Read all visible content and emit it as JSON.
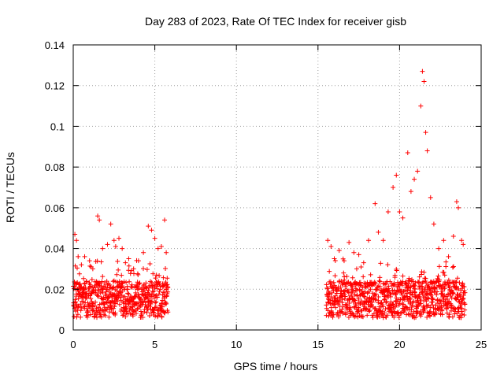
{
  "chart_data": {
    "type": "scatter",
    "title": "Day 283 of 2023, Rate Of TEC Index for receiver gisb",
    "xlabel": "GPS time / hours",
    "ylabel": "ROTI / TECUs",
    "xlim": [
      0,
      25
    ],
    "ylim": [
      0,
      0.14
    ],
    "x_ticks": [
      "0",
      "5",
      "10",
      "15",
      "20",
      "25"
    ],
    "y_ticks": [
      "0",
      "0.02",
      "0.04",
      "0.06",
      "0.08",
      "0.1",
      "0.12",
      "0.14"
    ],
    "grid": true,
    "legend": "none",
    "marker": "plus",
    "color": "#ff0000",
    "segments": [
      {
        "x_start": 0.0,
        "x_end": 5.8
      },
      {
        "x_start": 15.5,
        "x_end": 24.0
      }
    ],
    "series": [
      {
        "x": [
          0.1,
          0.2,
          0.3,
          0.5,
          0.7,
          1.0,
          1.2,
          1.5,
          1.6,
          1.8,
          2.1,
          2.3,
          2.5,
          2.6,
          2.8,
          3.0,
          3.2,
          3.4,
          3.7,
          4.0,
          4.3,
          4.6,
          4.8,
          5.0,
          5.2,
          5.4,
          5.6,
          5.7,
          15.6,
          15.8,
          16.0,
          16.3,
          16.6,
          16.9,
          17.2,
          17.5,
          17.8,
          18.1,
          18.5,
          18.7,
          19.0,
          19.3,
          19.6,
          19.8,
          20.0,
          20.2,
          20.5,
          20.7,
          20.9,
          21.1,
          21.3,
          21.4,
          21.5,
          21.6,
          21.7,
          21.9,
          22.1,
          22.4,
          22.7,
          23.0,
          23.3,
          23.5,
          23.6,
          23.8,
          23.9
        ],
        "y": [
          0.047,
          0.044,
          0.036,
          0.032,
          0.036,
          0.034,
          0.03,
          0.056,
          0.054,
          0.04,
          0.042,
          0.052,
          0.044,
          0.041,
          0.045,
          0.04,
          0.033,
          0.035,
          0.03,
          0.034,
          0.038,
          0.051,
          0.049,
          0.045,
          0.04,
          0.041,
          0.054,
          0.038,
          0.044,
          0.041,
          0.035,
          0.039,
          0.034,
          0.043,
          0.038,
          0.037,
          0.033,
          0.044,
          0.062,
          0.048,
          0.044,
          0.058,
          0.07,
          0.076,
          0.058,
          0.055,
          0.087,
          0.068,
          0.074,
          0.078,
          0.11,
          0.127,
          0.122,
          0.097,
          0.088,
          0.065,
          0.052,
          0.04,
          0.044,
          0.036,
          0.046,
          0.063,
          0.06,
          0.044,
          0.042
        ]
      }
    ]
  }
}
